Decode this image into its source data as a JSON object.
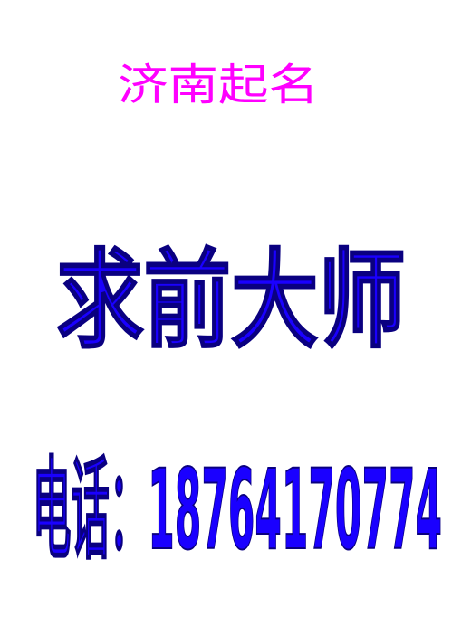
{
  "header": {
    "title": "济南起名"
  },
  "headline": "求前大师",
  "contact": "电话：18764170774"
}
